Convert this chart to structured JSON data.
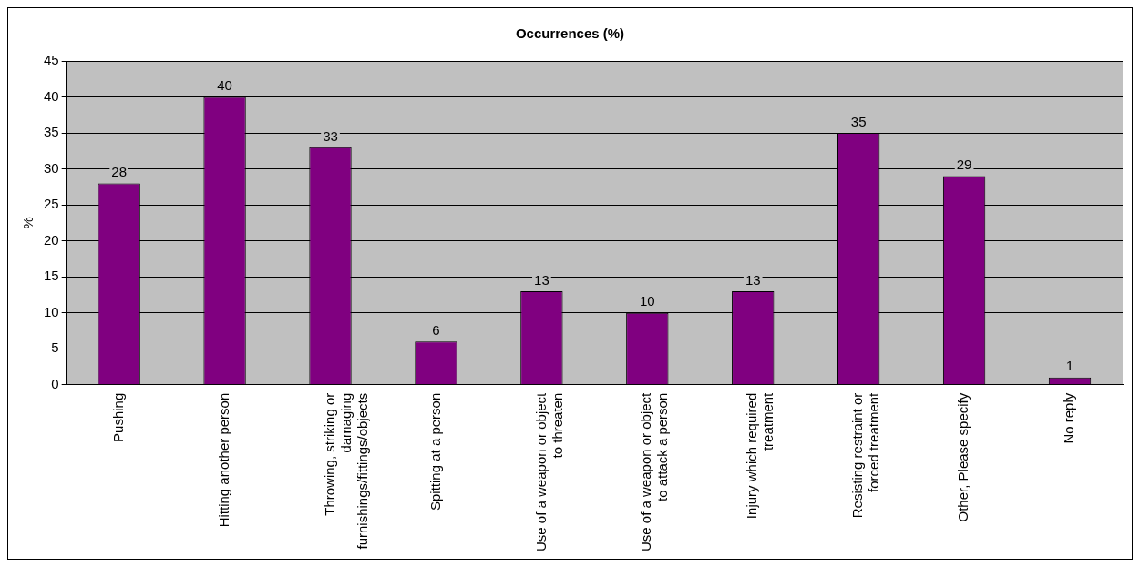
{
  "chart_data": {
    "type": "bar",
    "title": "Occurrences (%)",
    "ylabel": "%",
    "categories": [
      "Pushing",
      "Hitting another person",
      "Throwing, striking or damaging furnishings/fittings/objects",
      "Spitting at a person",
      "Use of a weapon or object to threaten",
      "Use of a weapon or object to attack a person",
      "Injury which required treatment",
      "Resisting restraint or forced treatment",
      "Other, Please specify",
      "No reply"
    ],
    "values": [
      28,
      40,
      33,
      6,
      13,
      10,
      13,
      35,
      29,
      1
    ],
    "color": "#800080",
    "ylim": [
      0,
      45
    ],
    "yticks": [
      0,
      5,
      10,
      15,
      20,
      25,
      30,
      35,
      40,
      45
    ],
    "grid": "y",
    "data_labels": true
  }
}
